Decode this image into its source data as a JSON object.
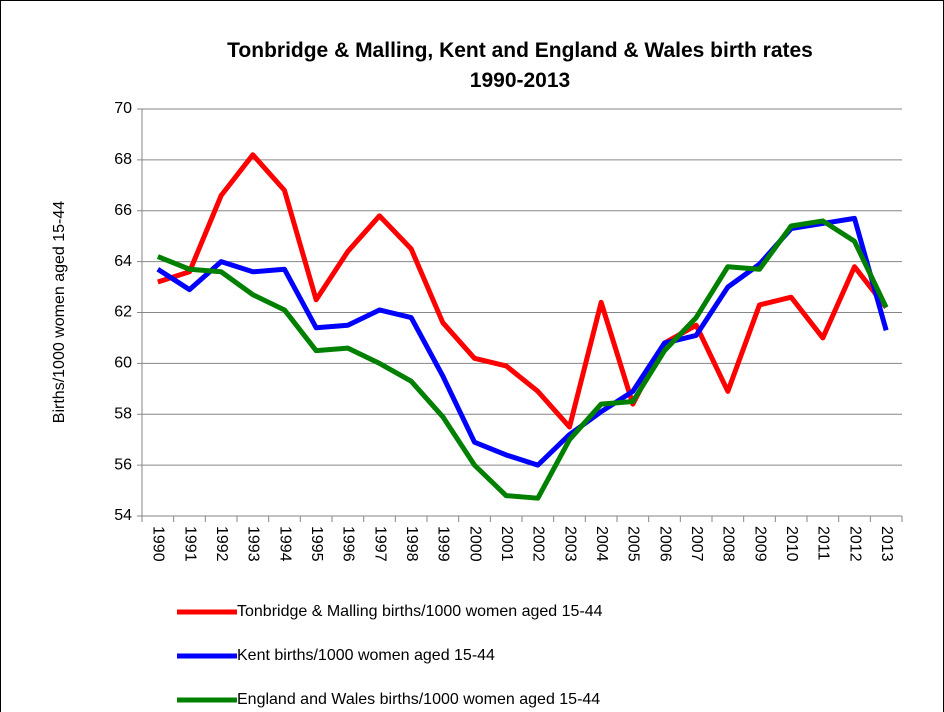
{
  "chart_data": {
    "type": "line",
    "title": "Tonbridge & Malling, Kent and England & Wales birth rates 1990-2013",
    "y_label": "Births/1000 women aged 15-44",
    "categories": [
      "1990",
      "1991",
      "1992",
      "1993",
      "1994",
      "1995",
      "1996",
      "1997",
      "1998",
      "1999",
      "2000",
      "2001",
      "2002",
      "2003",
      "2004",
      "2005",
      "2006",
      "2007",
      "2008",
      "2009",
      "2010",
      "2011",
      "2012",
      "2013"
    ],
    "series": [
      {
        "name": "Tonbridge & Malling births/1000 women aged 15-44",
        "color": "#ff0000",
        "values": [
          63.2,
          63.6,
          66.6,
          68.2,
          66.8,
          62.5,
          64.4,
          65.8,
          64.5,
          61.6,
          60.2,
          59.9,
          58.9,
          57.5,
          62.4,
          58.4,
          60.8,
          61.5,
          58.9,
          62.3,
          62.6,
          61.0,
          63.8,
          62.2
        ]
      },
      {
        "name": "Kent births/1000 women aged 15-44",
        "color": "#0000ff",
        "values": [
          63.7,
          62.9,
          64.0,
          63.6,
          63.7,
          61.4,
          61.5,
          62.1,
          61.8,
          59.5,
          56.9,
          56.4,
          56.0,
          57.2,
          58.1,
          58.9,
          60.8,
          61.1,
          63.0,
          63.9,
          65.3,
          65.5,
          65.7,
          61.3
        ]
      },
      {
        "name": "England and Wales births/1000 women aged 15-44",
        "color": "#008000",
        "values": [
          64.2,
          63.7,
          63.6,
          62.7,
          62.1,
          60.5,
          60.6,
          60.0,
          59.3,
          57.9,
          56.0,
          54.8,
          54.7,
          57.0,
          58.4,
          58.5,
          60.5,
          61.8,
          63.8,
          63.7,
          65.4,
          65.6,
          64.8,
          62.2
        ]
      }
    ],
    "ylim": [
      54,
      70
    ],
    "yticks": [
      54,
      56,
      58,
      60,
      62,
      64,
      66,
      68,
      70
    ],
    "grid": true,
    "legend": "bottom"
  }
}
